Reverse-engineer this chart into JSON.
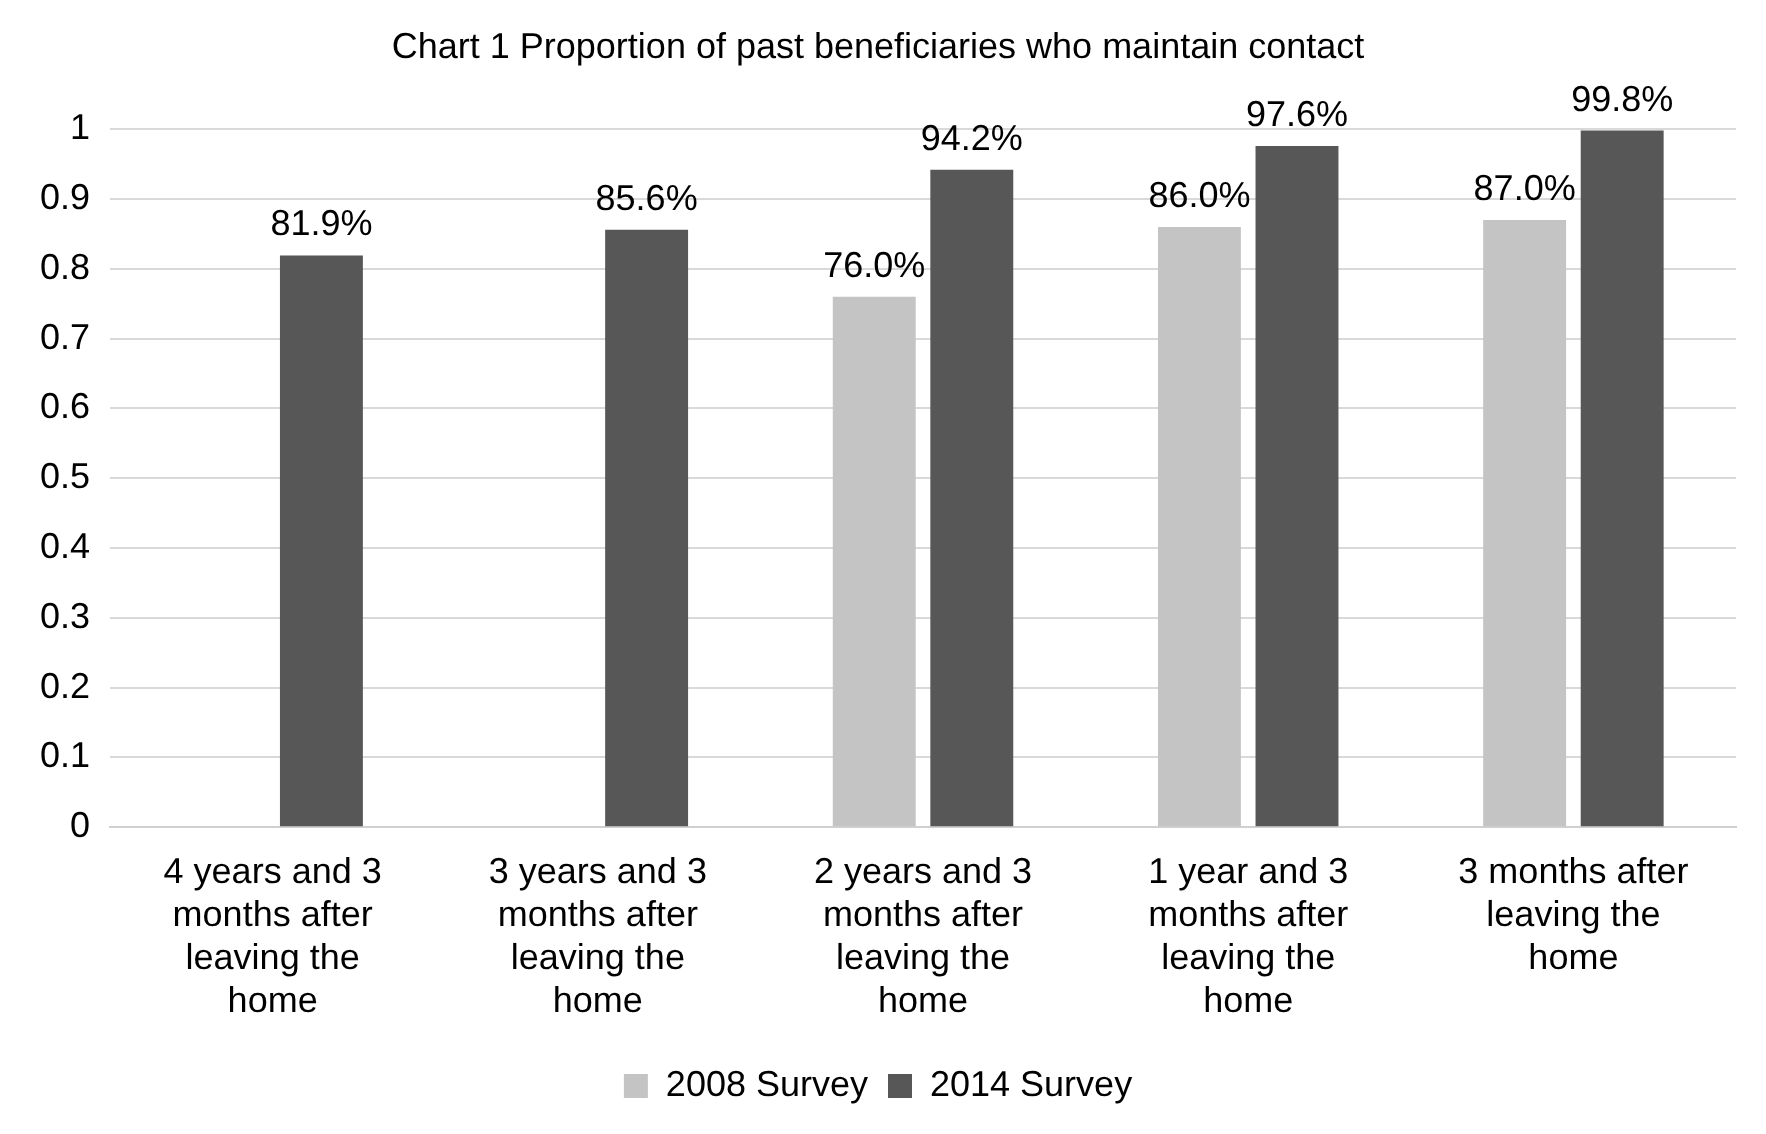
{
  "chart_data": {
    "type": "bar",
    "title": "Chart 1 Proportion of past beneficiaries who maintain contact",
    "categories": [
      "4 years and 3 months after leaving the home",
      "3 years and 3 months after leaving the home",
      "2 years and 3 months after leaving the home",
      "1 year and 3 months after leaving the home",
      "3 months after leaving the home"
    ],
    "series": [
      {
        "name": "2008 Survey",
        "color": "#c4c4c4",
        "values": [
          null,
          null,
          0.76,
          0.86,
          0.87
        ],
        "value_labels": [
          null,
          null,
          "76.0%",
          "86.0%",
          "87.0%"
        ]
      },
      {
        "name": "2014 Survey",
        "color": "#575757",
        "values": [
          0.819,
          0.856,
          0.942,
          0.976,
          0.998
        ],
        "value_labels": [
          "81.9%",
          "85.6%",
          "94.2%",
          "97.6%",
          "99.8%"
        ]
      }
    ],
    "ylim": [
      0,
      1
    ],
    "yticks": [
      0,
      0.1,
      0.2,
      0.3,
      0.4,
      0.5,
      0.6,
      0.7,
      0.8,
      0.9,
      1
    ],
    "grid": "y",
    "legend": "bottom"
  }
}
